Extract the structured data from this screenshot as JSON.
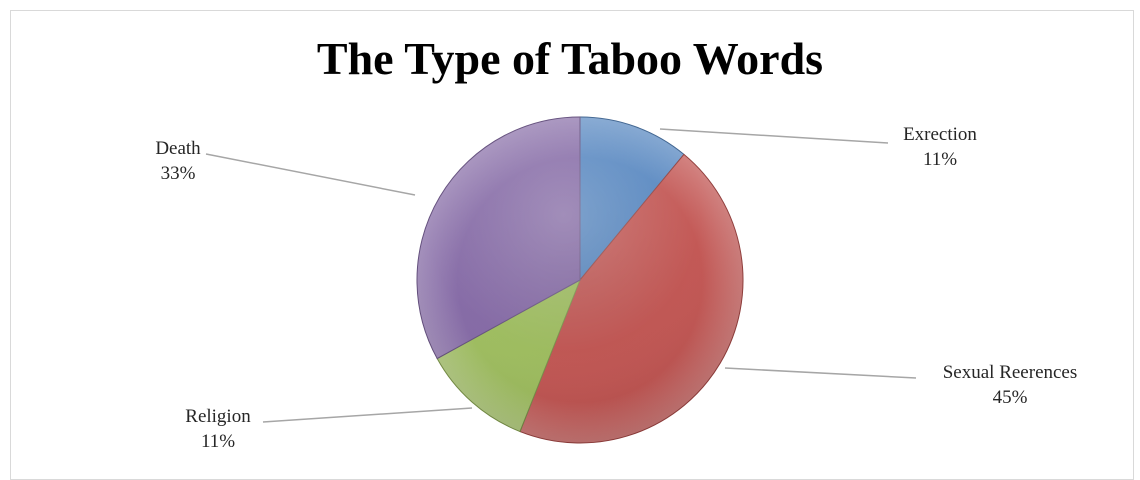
{
  "chart_data": {
    "type": "pie",
    "title": "The Type of Taboo Words",
    "slices": [
      {
        "label": "Exrection",
        "value": 11,
        "value_label": "11%",
        "color": "#4f81bd"
      },
      {
        "label": "Sexual Reerences",
        "value": 45,
        "value_label": "45%",
        "color": "#c0504d"
      },
      {
        "label": "Religion",
        "value": 11,
        "value_label": "11%",
        "color": "#9bbb59"
      },
      {
        "label": "Death",
        "value": 33,
        "value_label": "33%",
        "color": "#8064a2"
      }
    ],
    "start_angle_deg": 0,
    "direction": "clockwise",
    "legend": "none"
  }
}
